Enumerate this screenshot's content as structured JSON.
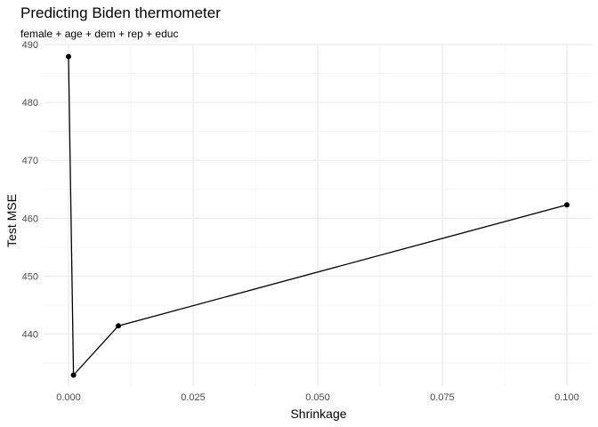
{
  "chart_data": {
    "type": "line",
    "title": "Predicting Biden thermometer",
    "subtitle": "female + age + dem + rep + educ",
    "xlabel": "Shrinkage",
    "ylabel": "Test MSE",
    "x": [
      0.0,
      0.001,
      0.01,
      0.1
    ],
    "y": [
      487.9,
      432.9,
      441.4,
      462.3
    ],
    "xlim": [
      -0.005,
      0.105
    ],
    "ylim": [
      431.0,
      490.0
    ],
    "xticks": [
      0.0,
      0.025,
      0.05,
      0.075,
      0.1
    ],
    "xtick_labels": [
      "0.000",
      "0.025",
      "0.050",
      "0.075",
      "0.100"
    ],
    "yticks": [
      440,
      450,
      460,
      470,
      480,
      490
    ],
    "ytick_labels": [
      "440",
      "450",
      "460",
      "470",
      "480",
      "490"
    ],
    "grid": true,
    "markers": true,
    "line_color": "#000000",
    "grid_major_color": "#ebebeb",
    "grid_minor_color": "#f5f5f5"
  }
}
